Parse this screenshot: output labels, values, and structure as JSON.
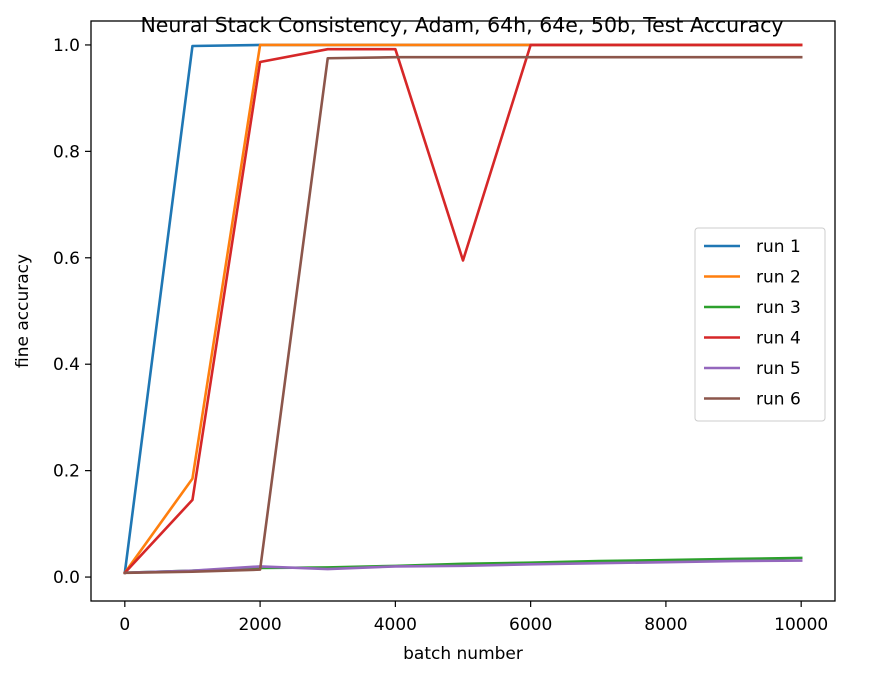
{
  "chart_data": {
    "type": "line",
    "title": "Neural Stack Consistency, Adam, 64h, 64e, 50b, Test Accuracy",
    "xlabel": "batch number",
    "ylabel": "fine accuracy",
    "xlim": [
      -500,
      10500
    ],
    "ylim": [
      -0.045,
      1.045
    ],
    "xticks": [
      0,
      2000,
      4000,
      6000,
      8000,
      10000
    ],
    "xtick_labels": [
      "0",
      "2000",
      "4000",
      "6000",
      "8000",
      "10000"
    ],
    "yticks": [
      0.0,
      0.2,
      0.4,
      0.6,
      0.8,
      1.0
    ],
    "ytick_labels": [
      "0.0",
      "0.2",
      "0.4",
      "0.6",
      "0.8",
      "1.0"
    ],
    "grid": false,
    "legend_position": "center-right",
    "x": [
      0,
      1000,
      2000,
      3000,
      4000,
      5000,
      6000,
      7000,
      8000,
      9000,
      10000
    ],
    "series": [
      {
        "name": "run 1",
        "color": "#1f77b4",
        "values": [
          0.008,
          0.998,
          1.0,
          1.0,
          1.0,
          1.0,
          1.0,
          1.0,
          1.0,
          1.0,
          1.0
        ]
      },
      {
        "name": "run 2",
        "color": "#ff7f0e",
        "values": [
          0.008,
          0.185,
          1.0,
          1.0,
          1.0,
          1.0,
          1.0,
          1.0,
          1.0,
          1.0,
          1.0
        ]
      },
      {
        "name": "run 3",
        "color": "#2ca02c",
        "values": [
          0.008,
          0.012,
          0.017,
          0.018,
          0.021,
          0.025,
          0.027,
          0.03,
          0.032,
          0.034,
          0.036
        ]
      },
      {
        "name": "run 4",
        "color": "#d62728",
        "values": [
          0.008,
          0.145,
          0.968,
          0.992,
          0.992,
          0.595,
          1.0,
          1.0,
          1.0,
          1.0,
          1.0
        ]
      },
      {
        "name": "run 5",
        "color": "#9467bd",
        "values": [
          0.008,
          0.012,
          0.02,
          0.015,
          0.02,
          0.021,
          0.024,
          0.026,
          0.028,
          0.03,
          0.031
        ]
      },
      {
        "name": "run 6",
        "color": "#8c564b",
        "values": [
          0.008,
          0.01,
          0.014,
          0.975,
          0.977,
          0.977,
          0.977,
          0.977,
          0.977,
          0.977,
          0.977
        ]
      }
    ]
  }
}
